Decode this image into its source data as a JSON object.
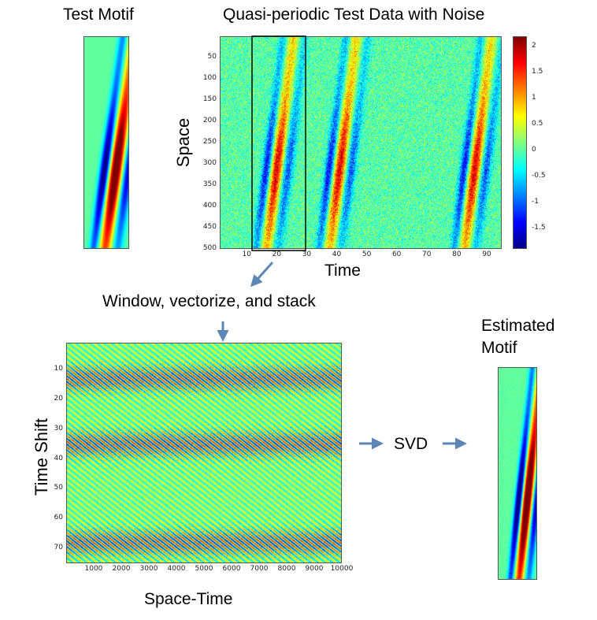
{
  "labels": {
    "test_motif": "Test Motif",
    "main_title": "Quasi-periodic Test Data with Noise",
    "space_axis": "Space",
    "time_axis": "Time",
    "step_window": "Window, vectorize, and stack",
    "time_shift_axis": "Time Shift",
    "space_time_axis": "Space-Time",
    "svd": "SVD",
    "estimated_motif_line1": "Estimated",
    "estimated_motif_line2": "Motif"
  },
  "colormap": "jet",
  "colors": {
    "arrow": "#5b86b6",
    "window_box": "#000000"
  },
  "chart_data": [
    {
      "id": "test-data",
      "type": "heatmap",
      "title": "Quasi-periodic Test Data with Noise",
      "xlabel": "Time",
      "ylabel": "Space",
      "xlim": [
        1,
        95
      ],
      "ylim": [
        500,
        1
      ],
      "xticks": [
        10,
        20,
        30,
        40,
        50,
        60,
        70,
        80,
        90
      ],
      "yticks": [
        50,
        100,
        150,
        200,
        250,
        300,
        350,
        400,
        450,
        500
      ],
      "motif_onsets_time": [
        10,
        31,
        76
      ],
      "window_time_range": [
        9,
        27
      ],
      "colorbar": {
        "range": [
          -1.9,
          2.2
        ],
        "ticks": [
          -1.5,
          -1,
          -0.5,
          0,
          0.5,
          1,
          1.5,
          2
        ],
        "tick_labels": [
          "-1.5",
          "-1",
          "-0.5",
          "0",
          "0.5",
          "1",
          "1.5",
          "2"
        ]
      }
    },
    {
      "id": "stacked",
      "type": "heatmap",
      "xlabel": "Space-Time",
      "ylabel": "Time Shift",
      "xlim": [
        1,
        10000
      ],
      "ylim": [
        75,
        1
      ],
      "xticks": [
        1000,
        2000,
        3000,
        4000,
        5000,
        6000,
        7000,
        8000,
        9000,
        10000
      ],
      "yticks": [
        10,
        20,
        30,
        40,
        50,
        60,
        70
      ]
    }
  ]
}
